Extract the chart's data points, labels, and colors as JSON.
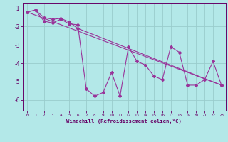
{
  "title": "",
  "xlabel": "Windchill (Refroidissement éolien,°C)",
  "ylabel": "",
  "background_color": "#b3e8e8",
  "grid_color": "#99cccc",
  "line_color": "#993399",
  "xlim": [
    -0.5,
    23.5
  ],
  "ylim": [
    -6.6,
    -0.7
  ],
  "yticks": [
    -6,
    -5,
    -4,
    -3,
    -2,
    -1
  ],
  "xticks": [
    0,
    1,
    2,
    3,
    4,
    5,
    6,
    7,
    8,
    9,
    10,
    11,
    12,
    13,
    14,
    15,
    16,
    17,
    18,
    19,
    20,
    21,
    22,
    23
  ],
  "series": [
    [
      0,
      -1.2
    ],
    [
      1,
      -1.1
    ],
    [
      2,
      -1.7
    ],
    [
      3,
      -1.8
    ],
    [
      4,
      -1.6
    ],
    [
      5,
      -1.85
    ],
    [
      6,
      -1.9
    ],
    [
      7,
      -5.4
    ],
    [
      8,
      -5.8
    ],
    [
      9,
      -5.6
    ],
    [
      10,
      -4.5
    ],
    [
      11,
      -5.8
    ],
    [
      12,
      -3.1
    ],
    [
      13,
      -3.9
    ],
    [
      14,
      -4.1
    ],
    [
      15,
      -4.7
    ],
    [
      16,
      -4.9
    ],
    [
      17,
      -3.1
    ],
    [
      18,
      -3.4
    ],
    [
      19,
      -5.2
    ],
    [
      20,
      -5.2
    ],
    [
      21,
      -4.9
    ],
    [
      22,
      -3.9
    ],
    [
      23,
      -5.2
    ]
  ],
  "series2": [
    [
      0,
      -1.2
    ],
    [
      1,
      -1.1
    ],
    [
      2,
      -1.5
    ],
    [
      3,
      -1.6
    ],
    [
      4,
      -1.55
    ],
    [
      5,
      -1.75
    ],
    [
      6,
      -2.1
    ],
    [
      23,
      -5.2
    ]
  ],
  "series3": [
    [
      0,
      -1.2
    ],
    [
      23,
      -5.2
    ]
  ]
}
